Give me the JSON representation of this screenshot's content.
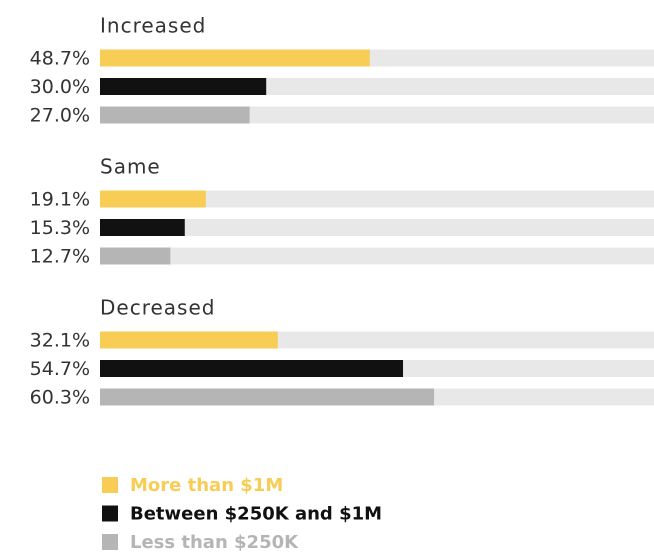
{
  "chart_data": {
    "type": "bar",
    "orientation": "horizontal",
    "categories": [
      "Increased",
      "Same",
      "Decreased"
    ],
    "xlim": [
      0,
      100
    ],
    "series": [
      {
        "name": "More than $1M",
        "color": "#f7cd56",
        "values": [
          48.7,
          19.1,
          32.1
        ],
        "value_labels": [
          "48.7%",
          "19.1%",
          "32.1%"
        ]
      },
      {
        "name": "Between $250K and $1M",
        "color": "#111111",
        "values": [
          30.0,
          15.3,
          54.7
        ],
        "value_labels": [
          "30.0%",
          "15.3%",
          "54.7%"
        ]
      },
      {
        "name": "Less than $250K",
        "color": "#b5b5b5",
        "values": [
          27.0,
          12.7,
          60.3
        ],
        "value_labels": [
          "27.0%",
          "12.7%",
          "60.3%"
        ]
      }
    ]
  }
}
